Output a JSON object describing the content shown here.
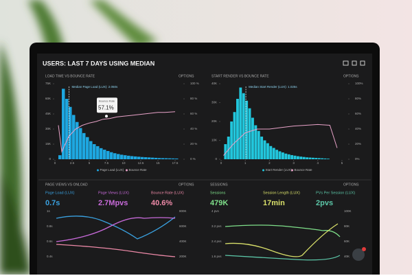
{
  "header": {
    "title": "USERS: LAST 7 DAYS USING MEDIAN"
  },
  "panels": [
    {
      "title": "LOAD TIME VS BOUNCE RATE",
      "options": "OPTIONS",
      "annotation": "Median Page Load (LUX): 2.050s",
      "median": 2.05,
      "tooltip": {
        "label": "Bounce Rate",
        "value": "57.1%",
        "x": 7.5,
        "y": 57.1
      },
      "legend": [
        "Page Load (LUX)",
        "Bounce Rate"
      ],
      "colors": [
        "#1ea7e0",
        "#e9a3c9"
      ],
      "xlim": [
        0,
        18.5
      ],
      "xticks": [
        0,
        2.5,
        5,
        7.5,
        10,
        12.5,
        15,
        17.5
      ],
      "ylim": [
        0,
        75000
      ],
      "yticks": [
        {
          "value": 0,
          "label": "0"
        },
        {
          "value": 15000,
          "label": "15K"
        },
        {
          "value": 30000,
          "label": "30K"
        },
        {
          "value": 45000,
          "label": "45K"
        },
        {
          "value": 60000,
          "label": "60K"
        },
        {
          "value": 75000,
          "label": "75K"
        }
      ],
      "y2lim": [
        0,
        100
      ],
      "y2ticks": [
        {
          "value": 0,
          "label": "0 %"
        },
        {
          "value": 20,
          "label": "20 %"
        },
        {
          "value": 40,
          "label": "40 %"
        },
        {
          "value": 60,
          "label": "60 %"
        },
        {
          "value": 80,
          "label": "80 %"
        },
        {
          "value": 100,
          "label": "100 %"
        }
      ],
      "bins": [
        0.5,
        1,
        1.5,
        2,
        2.5,
        3,
        3.5,
        4,
        4.5,
        5,
        5.5,
        6,
        6.5,
        7,
        7.5,
        8,
        8.5,
        9,
        9.5,
        10,
        10.5,
        11,
        11.5,
        12,
        12.5,
        13,
        13.5,
        14,
        14.5,
        15,
        15.5,
        16,
        16.5,
        17,
        17.5,
        18
      ],
      "values": [
        4000,
        70000,
        60000,
        52000,
        44000,
        37000,
        31000,
        26000,
        22000,
        18000,
        15000,
        13000,
        11000,
        9500,
        8200,
        7000,
        6000,
        5200,
        4500,
        4000,
        3500,
        3100,
        2800,
        2500,
        2200,
        2000,
        1800,
        1600,
        1400,
        1200,
        1100,
        1000,
        900,
        800,
        700
      ],
      "line": {
        "x": [
          0.5,
          1,
          1.5,
          2,
          3,
          4,
          5,
          6,
          7,
          8,
          9,
          10,
          11,
          12,
          13,
          14,
          15,
          16,
          17.5
        ],
        "values": [
          45,
          10,
          20,
          30,
          40,
          45,
          48,
          50,
          53,
          54,
          56,
          57,
          58,
          59,
          60,
          61,
          62,
          62,
          63
        ]
      }
    },
    {
      "title": "START RENDER VS BOUNCE RATE",
      "options": "OPTIONS",
      "annotation": "Median Start Render (LUX): 1.025s",
      "median": 1.025,
      "legend": [
        "Start Render (LUX)",
        "Bounce Rate"
      ],
      "colors": [
        "#22c6dc",
        "#e9a3c9"
      ],
      "xlim": [
        0,
        5.2
      ],
      "xticks": [
        0,
        1,
        2,
        3,
        4,
        5
      ],
      "ylim": [
        0,
        40000
      ],
      "yticks": [
        {
          "value": 0,
          "label": "0"
        },
        {
          "value": 10000,
          "label": "10K"
        },
        {
          "value": 20000,
          "label": "20K"
        },
        {
          "value": 30000,
          "label": "30K"
        },
        {
          "value": 40000,
          "label": "40K"
        }
      ],
      "y2lim": [
        0,
        100
      ],
      "y2ticks": [
        {
          "value": 0,
          "label": "0%"
        },
        {
          "value": 20,
          "label": "20%"
        },
        {
          "value": 40,
          "label": "40%"
        },
        {
          "value": 60,
          "label": "60%"
        },
        {
          "value": 80,
          "label": "80%"
        },
        {
          "value": 100,
          "label": "100%"
        }
      ],
      "bins": [
        0.125,
        0.25,
        0.375,
        0.5,
        0.625,
        0.75,
        0.875,
        1,
        1.125,
        1.25,
        1.375,
        1.5,
        1.625,
        1.75,
        1.875,
        2,
        2.125,
        2.25,
        2.375,
        2.5,
        2.625,
        2.75,
        2.875,
        3,
        3.125,
        3.25,
        3.375,
        3.5,
        3.625,
        3.75,
        3.875,
        4,
        4.125,
        4.25,
        4.375,
        4.5
      ],
      "values": [
        8000,
        12000,
        20000,
        25000,
        32000,
        38000,
        35000,
        31000,
        27000,
        22000,
        18000,
        15000,
        12000,
        10000,
        8500,
        7000,
        6000,
        5000,
        4200,
        3600,
        3000,
        2600,
        2200,
        1900,
        1600,
        1400,
        1200,
        1000,
        900,
        800,
        700,
        600,
        500,
        400,
        300
      ],
      "line": {
        "x": [
          0.1,
          0.5,
          1,
          1.5,
          2,
          2.5,
          3,
          3.5,
          4,
          4.5,
          4.8
        ],
        "values": [
          5,
          20,
          35,
          40,
          40,
          42,
          44,
          45,
          46,
          45,
          15
        ]
      }
    }
  ],
  "page_views": {
    "title": "PAGE VIEWS VS ONLOAD",
    "options": "OPTIONS",
    "metrics": [
      {
        "label": "Page Load (LUX)",
        "value": "0.7s"
      },
      {
        "label": "Page Views (LUX)",
        "value": "2.7Mpvs"
      },
      {
        "label": "Bounce Rate (LUX)",
        "value": "40.6%"
      }
    ],
    "left_ticks": [
      "1s",
      "0.8s",
      "0.6s",
      "0.4s"
    ],
    "right_ticks": [
      "800K",
      "600K",
      "400K",
      "200K"
    ]
  },
  "sessions": {
    "title": "SESSIONS",
    "options": "OPTIONS",
    "metrics": [
      {
        "label": "Sessions",
        "value": "479K"
      },
      {
        "label": "Session Length (LUX)",
        "value": "17min"
      },
      {
        "label": "PVs Per Session (LUX)",
        "value": "2pvs"
      }
    ],
    "left_ticks": [
      "4 pvs",
      "3.2 pvs",
      "2.4 pvs",
      "1.6 pvs"
    ],
    "right_ticks": [
      "100K",
      "80K",
      "60K",
      "40K"
    ]
  }
}
